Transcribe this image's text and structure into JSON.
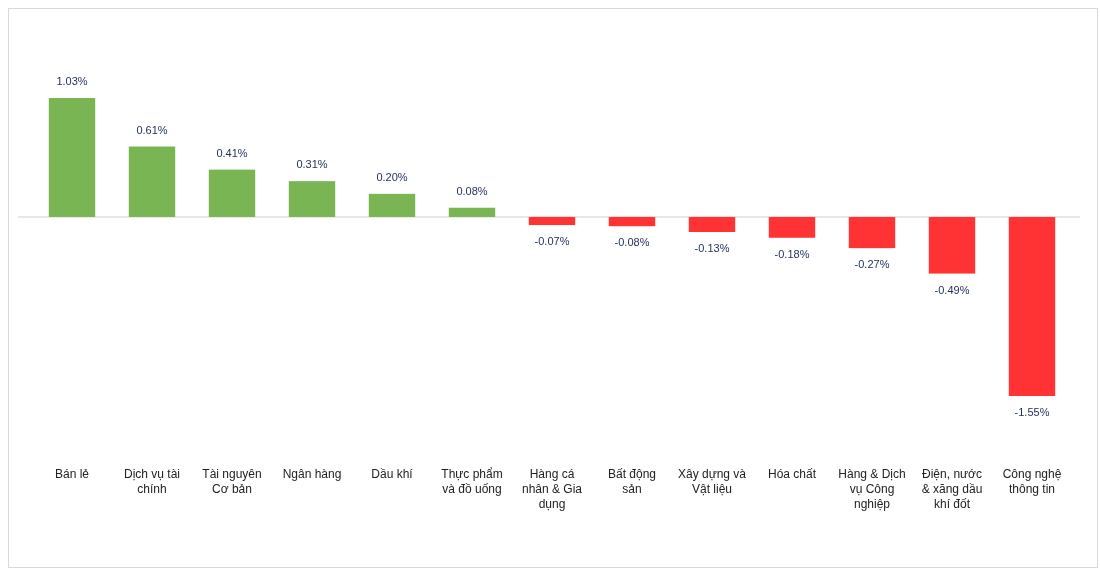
{
  "chart_data": {
    "type": "bar",
    "categories": [
      "Bán lẻ",
      "Dịch vụ tài chính",
      "Tài nguyên Cơ bản",
      "Ngân hàng",
      "Dầu khí",
      "Thực phẩm và đồ uống",
      "Hàng cá nhân & Gia dụng",
      "Bất động sản",
      "Xây dựng và Vật liệu",
      "Hóa chất",
      "Hàng & Dịch vụ Công nghiệp",
      "Điện, nước & xăng dầu khí đốt",
      "Công nghệ thông tin"
    ],
    "values": [
      1.03,
      0.61,
      0.41,
      0.31,
      0.2,
      0.08,
      -0.07,
      -0.08,
      -0.13,
      -0.18,
      -0.27,
      -0.49,
      -1.55
    ],
    "value_labels": [
      "1.03%",
      "0.61%",
      "0.41%",
      "0.31%",
      "0.20%",
      "0.08%",
      "-0.07%",
      "-0.08%",
      "-0.13%",
      "-0.18%",
      "-0.27%",
      "-0.49%",
      "-1.55%"
    ],
    "colors": [
      "#79b552",
      "#79b552",
      "#79b552",
      "#79b552",
      "#79b552",
      "#79b552",
      "#ff3333",
      "#ff3333",
      "#ff3333",
      "#ff3333",
      "#ff3333",
      "#ff3333",
      "#ff3333"
    ],
    "relative": false
  }
}
